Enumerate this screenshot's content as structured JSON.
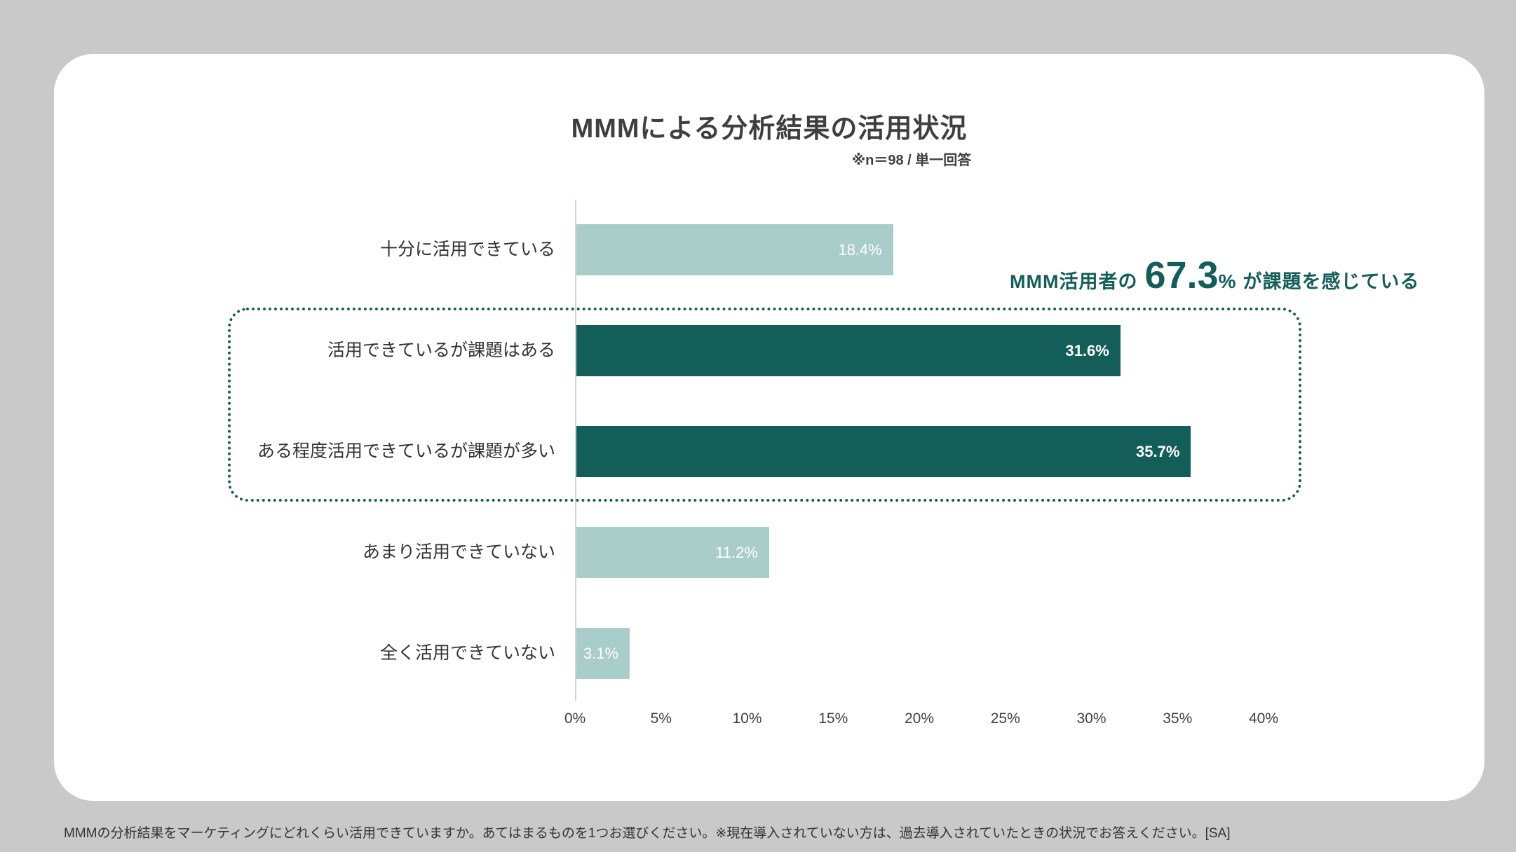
{
  "page": {
    "title": "MMMによる分析結果の活用状況",
    "subtitle": "※n＝98 / 単一回答",
    "footnote": "MMMの分析結果をマーケティングにどれくらい活用できていますか。あてはまるものを1つお選びください。※現在導入されていない方は、過去導入されていたときの状況でお答えください。[SA]"
  },
  "annotation": {
    "prefix": "MMM活用者の",
    "value": "67.3",
    "unit": "%",
    "suffix": "が課題を感じている"
  },
  "chart_data": {
    "type": "bar",
    "orientation": "horizontal",
    "title": "MMMによる分析結果の活用状況",
    "sample_note": "※n＝98 / 単一回答",
    "categories": [
      "十分に活用できている",
      "活用できているが課題はある",
      "ある程度活用できているが課題が多い",
      "あまり活用できていない",
      "全く活用できていない"
    ],
    "values": [
      18.4,
      31.6,
      35.7,
      11.2,
      3.1
    ],
    "value_labels": [
      "18.4%",
      "31.6%",
      "35.7%",
      "11.2%",
      "3.1%"
    ],
    "highlighted": [
      false,
      true,
      true,
      false,
      false
    ],
    "highlight_annotation": "MMM活用者の 67.3% が課題を感じている",
    "xlim": [
      0,
      40
    ],
    "x_ticks": [
      "0%",
      "5%",
      "10%",
      "15%",
      "20%",
      "25%",
      "30%",
      "35%",
      "40%"
    ],
    "grid": false,
    "legend": "none",
    "colors": {
      "normal_bar": "#a9cdc9",
      "highlight_bar": "#135e59",
      "annotation_text": "#135e59",
      "value_label_text": "#ffffff"
    }
  }
}
